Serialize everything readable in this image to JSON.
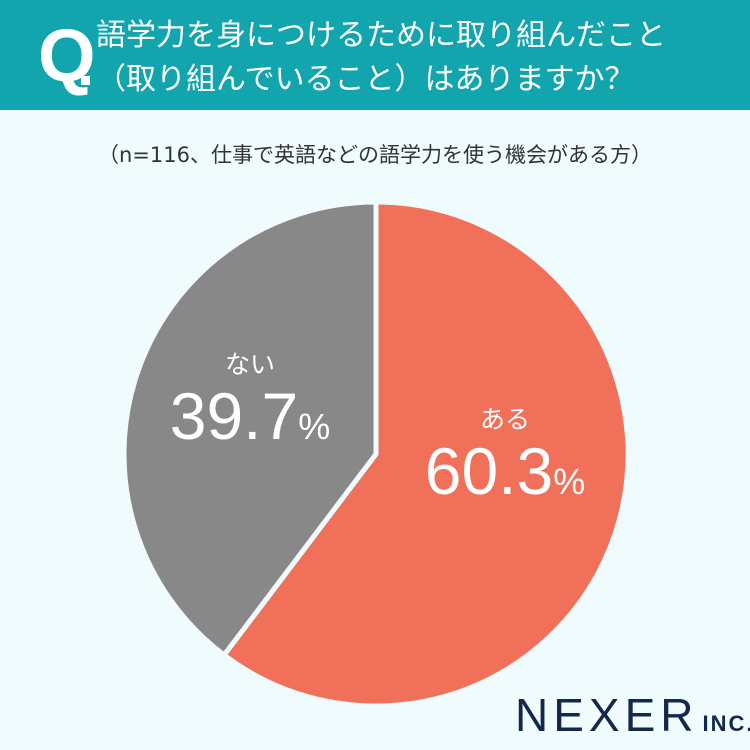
{
  "header": {
    "q_mark": "Q",
    "question_line1": "語学力を身につけるために取り組んだこと",
    "question_line2": "（取り組んでいること）はありますか？",
    "background_color": "#12a5ad"
  },
  "sample_note": "（n=116、仕事で英語などの語学力を使う機会がある方）",
  "labels": {
    "yes": {
      "name": "ある",
      "value": "60.3",
      "unit": "%"
    },
    "no": {
      "name": "ない",
      "value": "39.7",
      "unit": "%"
    }
  },
  "logo": {
    "main": "NEXER",
    "suffix": "INC."
  },
  "chart_data": {
    "type": "pie",
    "title": "語学力を身につけるために取り組んだこと（取り組んでいること）はありますか？",
    "subtitle": "（n=116、仕事で英語などの語学力を使う機会がある方）",
    "categories": [
      "ある",
      "ない"
    ],
    "values": [
      60.3,
      39.7
    ],
    "colors": [
      "#f07059",
      "#888888"
    ],
    "start_angle": "12 o'clock, clockwise",
    "legend": "inline labels"
  }
}
